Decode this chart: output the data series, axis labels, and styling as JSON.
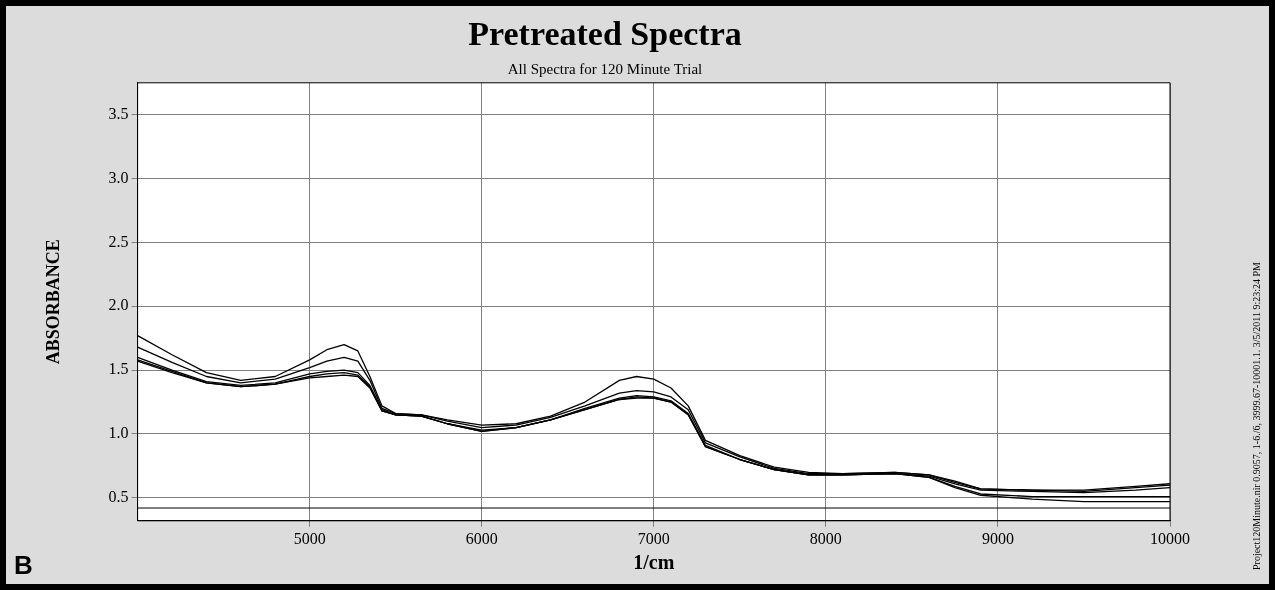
{
  "chart_data": {
    "type": "line",
    "title": "Pretreated Spectra",
    "subtitle": "All Spectra for 120 Minute Trial",
    "xlabel": "1/cm",
    "ylabel": "ABSORBANCE",
    "annotations": [
      "B",
      "Project120Minute.nir 0.9057, 1-6./6, 3999.67-10001.1. 3/5/2011 9:23:24 PM"
    ],
    "x": [
      4000,
      4200,
      4400,
      4600,
      4800,
      5000,
      5100,
      5200,
      5280,
      5350,
      5420,
      5500,
      5650,
      5800,
      6000,
      6200,
      6400,
      6600,
      6800,
      6900,
      7000,
      7100,
      7200,
      7300,
      7500,
      7700,
      7900,
      8100,
      8400,
      8600,
      8750,
      8900,
      9200,
      9500,
      9800,
      10000
    ],
    "series": [
      {
        "color": "#000000",
        "values": [
          1.77,
          1.62,
          1.48,
          1.42,
          1.45,
          1.58,
          1.66,
          1.7,
          1.65,
          1.45,
          1.22,
          1.16,
          1.15,
          1.11,
          1.07,
          1.08,
          1.14,
          1.25,
          1.42,
          1.45,
          1.43,
          1.36,
          1.22,
          0.95,
          0.83,
          0.74,
          0.7,
          0.69,
          0.7,
          0.68,
          0.62,
          0.57,
          0.56,
          0.56,
          0.59,
          0.61
        ]
      },
      {
        "color": "#000000",
        "values": [
          1.68,
          1.56,
          1.45,
          1.4,
          1.43,
          1.52,
          1.57,
          1.6,
          1.57,
          1.42,
          1.2,
          1.16,
          1.15,
          1.1,
          1.05,
          1.07,
          1.13,
          1.22,
          1.32,
          1.34,
          1.33,
          1.29,
          1.19,
          0.93,
          0.82,
          0.73,
          0.69,
          0.69,
          0.7,
          0.68,
          0.63,
          0.57,
          0.56,
          0.55,
          0.58,
          0.6
        ]
      },
      {
        "color": "#000000",
        "values": [
          1.6,
          1.5,
          1.41,
          1.38,
          1.4,
          1.47,
          1.49,
          1.5,
          1.48,
          1.38,
          1.19,
          1.15,
          1.14,
          1.08,
          1.03,
          1.05,
          1.11,
          1.2,
          1.28,
          1.3,
          1.29,
          1.26,
          1.16,
          0.91,
          0.8,
          0.72,
          0.68,
          0.68,
          0.69,
          0.67,
          0.61,
          0.56,
          0.55,
          0.54,
          0.56,
          0.58
        ]
      },
      {
        "color": "#000000",
        "values": [
          1.58,
          1.49,
          1.4,
          1.37,
          1.39,
          1.45,
          1.47,
          1.48,
          1.46,
          1.37,
          1.18,
          1.15,
          1.14,
          1.08,
          1.02,
          1.05,
          1.11,
          1.19,
          1.27,
          1.29,
          1.28,
          1.25,
          1.15,
          0.9,
          0.8,
          0.72,
          0.68,
          0.68,
          0.69,
          0.66,
          0.59,
          0.53,
          0.51,
          0.51,
          0.51,
          0.51
        ]
      },
      {
        "color": "#000000",
        "values": [
          1.57,
          1.48,
          1.4,
          1.37,
          1.39,
          1.44,
          1.45,
          1.46,
          1.45,
          1.36,
          1.18,
          1.15,
          1.14,
          1.08,
          1.02,
          1.05,
          1.11,
          1.19,
          1.27,
          1.28,
          1.28,
          1.25,
          1.15,
          0.9,
          0.8,
          0.72,
          0.68,
          0.68,
          0.69,
          0.66,
          0.58,
          0.52,
          0.49,
          0.47,
          0.47,
          0.47
        ]
      }
    ],
    "xlim": [
      4000,
      10000
    ],
    "xticks": [
      5000,
      6000,
      7000,
      8000,
      9000,
      10000
    ],
    "ylim": [
      0.32,
      3.75
    ],
    "yticks": [
      {
        "value": 0.5,
        "label": "0.5"
      },
      {
        "value": 1,
        "label": "1.0"
      },
      {
        "value": 1.5,
        "label": "1.5"
      },
      {
        "value": 2,
        "label": "2.0"
      },
      {
        "value": 2.5,
        "label": "2.5"
      },
      {
        "value": 3,
        "label": "3.0"
      },
      {
        "value": 3.5,
        "label": "3.5"
      }
    ],
    "ref_lines": [
      {
        "axis": "y",
        "value": 0.42,
        "color": "#000000"
      }
    ],
    "grid": true,
    "legend": false
  }
}
